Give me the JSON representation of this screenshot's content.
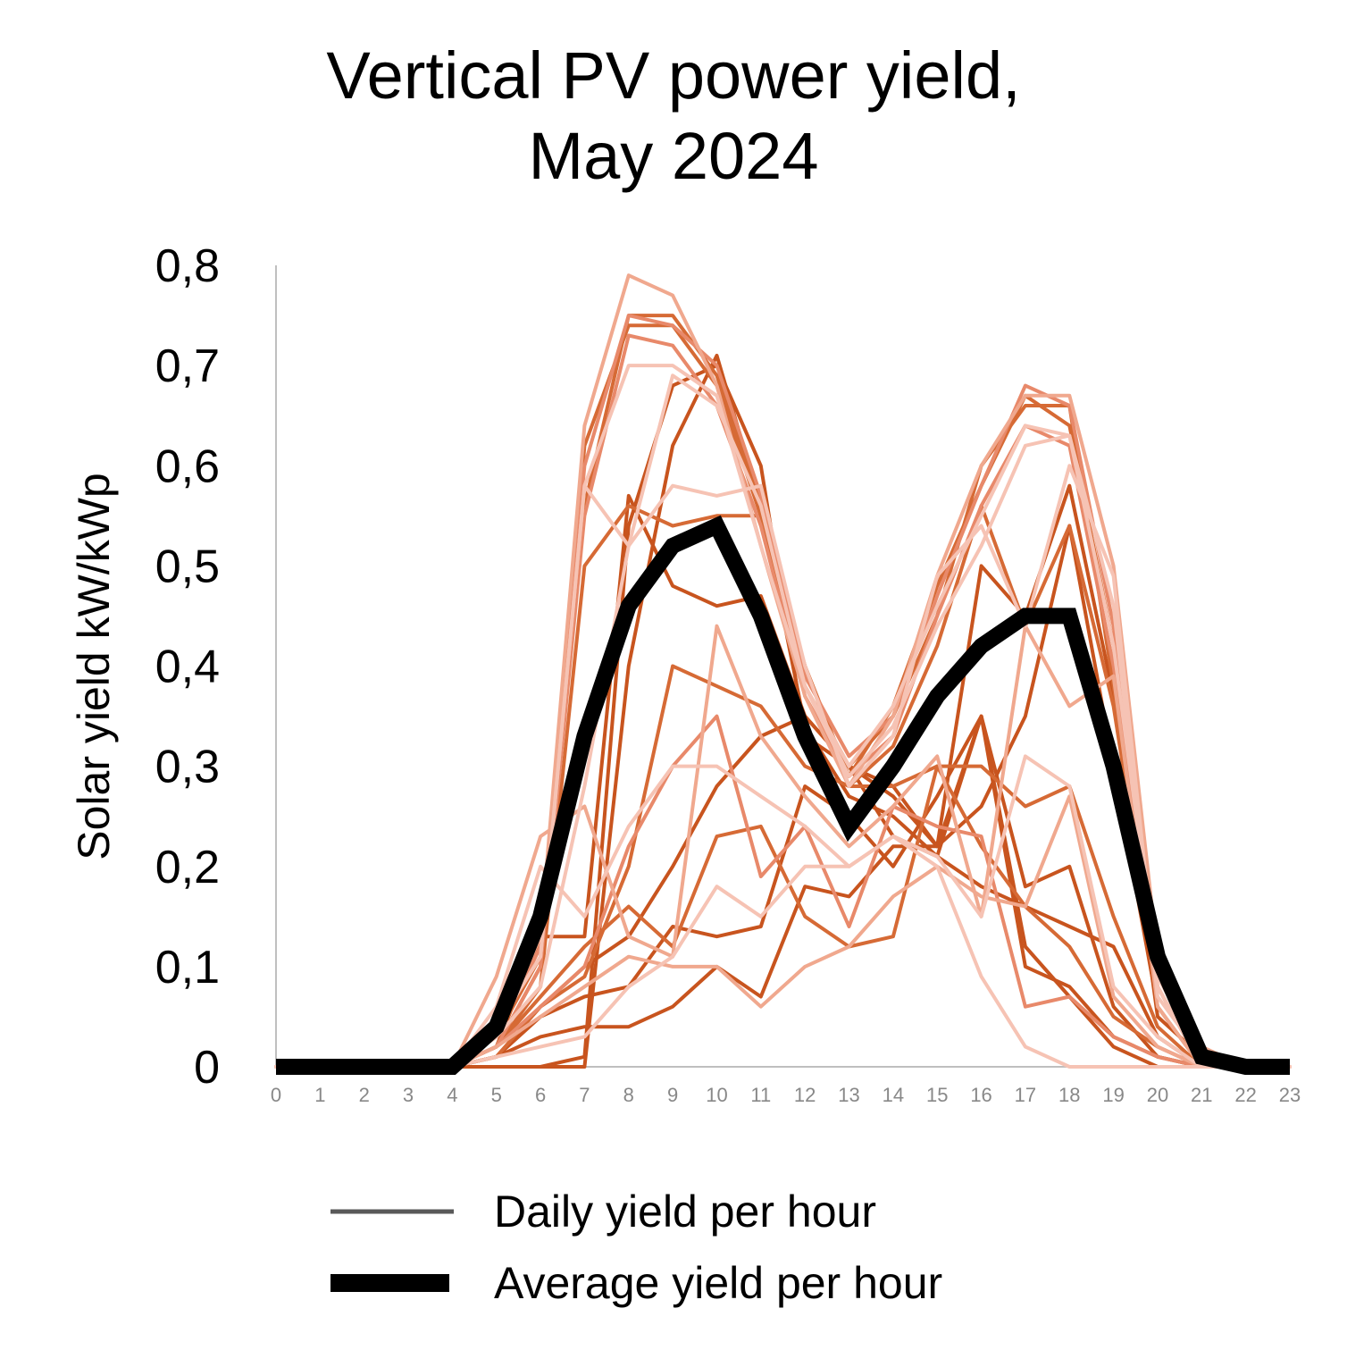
{
  "chart_data": {
    "type": "line",
    "title": [
      "Vertical PV power yield,",
      "May 2024"
    ],
    "ylabel": "Solar yield kW/kWp",
    "xlabel": "",
    "x": [
      0,
      1,
      2,
      3,
      4,
      5,
      6,
      7,
      8,
      9,
      10,
      11,
      12,
      13,
      14,
      15,
      16,
      17,
      18,
      19,
      20,
      21,
      22,
      23
    ],
    "xtick_labels": [
      "0",
      "1",
      "2",
      "3",
      "4",
      "5",
      "6",
      "7",
      "8",
      "9",
      "10",
      "11",
      "12",
      "13",
      "14",
      "15",
      "16",
      "17",
      "18",
      "19",
      "20",
      "21",
      "22",
      "23"
    ],
    "ytick_labels": [
      "0",
      "0,1",
      "0,2",
      "0,3",
      "0,4",
      "0,5",
      "0,6",
      "0,7",
      "0,8"
    ],
    "yticks": [
      0,
      0.1,
      0.2,
      0.3,
      0.4,
      0.5,
      0.6,
      0.7,
      0.8
    ],
    "ylim": [
      0,
      0.8
    ],
    "xlim": [
      0,
      23
    ],
    "grid": false,
    "legend_position": "bottom",
    "legend": [
      {
        "label": "Daily yield per hour",
        "color": "#595959",
        "style": "thin"
      },
      {
        "label": "Average yield per hour",
        "color": "#000000",
        "style": "thick"
      }
    ],
    "daily_palette": [
      "#c8541e",
      "#d66a35",
      "#e8896a",
      "#f0a88e",
      "#f6c3b4"
    ],
    "average": {
      "name": "Average yield per hour",
      "color": "#000000",
      "values": [
        0,
        0,
        0,
        0,
        0,
        0.04,
        0.15,
        0.33,
        0.46,
        0.52,
        0.54,
        0.45,
        0.33,
        0.24,
        0.3,
        0.37,
        0.42,
        0.45,
        0.45,
        0.3,
        0.11,
        0.01,
        0,
        0
      ]
    },
    "daily_series": [
      {
        "color_index": 0,
        "values": [
          0,
          0,
          0,
          0,
          0,
          0.02,
          0.13,
          0.13,
          0.57,
          0.48,
          0.46,
          0.47,
          0.35,
          0.3,
          0.27,
          0.22,
          0.5,
          0.45,
          0.58,
          0.37,
          0.05,
          0.01,
          0,
          0
        ]
      },
      {
        "color_index": 0,
        "values": [
          0,
          0,
          0,
          0,
          0,
          0,
          0,
          0.01,
          0.54,
          0.68,
          0.7,
          0.6,
          0.33,
          0.3,
          0.28,
          0.22,
          0.26,
          0.35,
          0.54,
          0.3,
          0.06,
          0,
          0,
          0
        ]
      },
      {
        "color_index": 0,
        "values": [
          0,
          0,
          0,
          0,
          0,
          0,
          0,
          0,
          0.4,
          0.62,
          0.71,
          0.56,
          0.34,
          0.27,
          0.25,
          0.21,
          0.18,
          0.16,
          0.14,
          0.12,
          0.03,
          0,
          0,
          0
        ]
      },
      {
        "color_index": 0,
        "values": [
          0,
          0,
          0,
          0,
          0,
          0.01,
          0.03,
          0.04,
          0.04,
          0.06,
          0.1,
          0.07,
          0.18,
          0.17,
          0.22,
          0.22,
          0.35,
          0.18,
          0.2,
          0.06,
          0.01,
          0,
          0,
          0
        ]
      },
      {
        "color_index": 0,
        "values": [
          0,
          0,
          0,
          0,
          0,
          0.01,
          0.05,
          0.07,
          0.08,
          0.14,
          0.13,
          0.14,
          0.28,
          0.25,
          0.2,
          0.27,
          0.35,
          0.1,
          0.08,
          0.03,
          0.01,
          0,
          0,
          0
        ]
      },
      {
        "color_index": 0,
        "values": [
          0,
          0,
          0,
          0,
          0,
          0.01,
          0.06,
          0.1,
          0.13,
          0.2,
          0.28,
          0.33,
          0.35,
          0.3,
          0.23,
          0.21,
          0.35,
          0.12,
          0.07,
          0.02,
          0,
          0,
          0,
          0
        ]
      },
      {
        "color_index": 1,
        "values": [
          0,
          0,
          0,
          0,
          0,
          0.02,
          0.07,
          0.12,
          0.16,
          0.12,
          0.23,
          0.24,
          0.15,
          0.12,
          0.13,
          0.3,
          0.22,
          0.16,
          0.12,
          0.05,
          0.02,
          0,
          0,
          0
        ]
      },
      {
        "color_index": 1,
        "values": [
          0,
          0,
          0,
          0,
          0,
          0.02,
          0.1,
          0.62,
          0.74,
          0.74,
          0.68,
          0.55,
          0.38,
          0.3,
          0.35,
          0.45,
          0.6,
          0.66,
          0.66,
          0.38,
          0.1,
          0.01,
          0,
          0
        ]
      },
      {
        "color_index": 1,
        "values": [
          0,
          0,
          0,
          0,
          0,
          0.03,
          0.11,
          0.56,
          0.75,
          0.75,
          0.69,
          0.56,
          0.4,
          0.29,
          0.36,
          0.48,
          0.58,
          0.67,
          0.64,
          0.42,
          0.11,
          0.01,
          0,
          0
        ]
      },
      {
        "color_index": 1,
        "values": [
          0,
          0,
          0,
          0,
          0,
          0.02,
          0.08,
          0.5,
          0.56,
          0.54,
          0.55,
          0.55,
          0.4,
          0.28,
          0.32,
          0.42,
          0.56,
          0.44,
          0.54,
          0.36,
          0.08,
          0,
          0,
          0
        ]
      },
      {
        "color_index": 1,
        "values": [
          0,
          0,
          0,
          0,
          0,
          0.01,
          0.06,
          0.09,
          0.2,
          0.4,
          0.38,
          0.36,
          0.3,
          0.28,
          0.28,
          0.3,
          0.3,
          0.26,
          0.28,
          0.15,
          0.04,
          0,
          0,
          0
        ]
      },
      {
        "color_index": 2,
        "values": [
          0,
          0,
          0,
          0,
          0,
          0.03,
          0.12,
          0.6,
          0.75,
          0.74,
          0.7,
          0.57,
          0.39,
          0.31,
          0.35,
          0.47,
          0.58,
          0.68,
          0.66,
          0.44,
          0.11,
          0.01,
          0,
          0
        ]
      },
      {
        "color_index": 2,
        "values": [
          0,
          0,
          0,
          0,
          0,
          0.02,
          0.1,
          0.55,
          0.73,
          0.72,
          0.66,
          0.54,
          0.37,
          0.29,
          0.33,
          0.45,
          0.56,
          0.64,
          0.62,
          0.4,
          0.1,
          0.01,
          0,
          0
        ]
      },
      {
        "color_index": 2,
        "values": [
          0,
          0,
          0,
          0,
          0,
          0.02,
          0.06,
          0.1,
          0.22,
          0.3,
          0.35,
          0.19,
          0.24,
          0.14,
          0.26,
          0.24,
          0.23,
          0.06,
          0.07,
          0.03,
          0.01,
          0,
          0,
          0
        ]
      },
      {
        "color_index": 3,
        "values": [
          0,
          0,
          0,
          0,
          0,
          0.03,
          0.13,
          0.64,
          0.79,
          0.77,
          0.68,
          0.52,
          0.37,
          0.28,
          0.35,
          0.49,
          0.6,
          0.67,
          0.67,
          0.5,
          0.11,
          0.02,
          0,
          0
        ]
      },
      {
        "color_index": 3,
        "values": [
          0,
          0,
          0,
          0,
          0,
          0.09,
          0.23,
          0.26,
          0.13,
          0.11,
          0.44,
          0.33,
          0.27,
          0.22,
          0.26,
          0.31,
          0.15,
          0.44,
          0.36,
          0.39,
          0.06,
          0,
          0,
          0
        ]
      },
      {
        "color_index": 3,
        "values": [
          0,
          0,
          0,
          0,
          0,
          0.02,
          0.05,
          0.08,
          0.11,
          0.1,
          0.1,
          0.06,
          0.1,
          0.12,
          0.17,
          0.2,
          0.17,
          0.16,
          0.27,
          0.07,
          0.02,
          0,
          0,
          0
        ]
      },
      {
        "color_index": 4,
        "values": [
          0,
          0,
          0,
          0,
          0,
          0.04,
          0.11,
          0.58,
          0.7,
          0.7,
          0.67,
          0.52,
          0.38,
          0.3,
          0.36,
          0.46,
          0.55,
          0.64,
          0.63,
          0.42,
          0.09,
          0.01,
          0,
          0
        ]
      },
      {
        "color_index": 4,
        "values": [
          0,
          0,
          0,
          0,
          0,
          0.04,
          0.11,
          0.58,
          0.52,
          0.58,
          0.57,
          0.58,
          0.4,
          0.28,
          0.33,
          0.49,
          0.54,
          0.44,
          0.6,
          0.49,
          0.08,
          0,
          0,
          0
        ]
      },
      {
        "color_index": 4,
        "values": [
          0,
          0,
          0,
          0,
          0,
          0.06,
          0.2,
          0.15,
          0.24,
          0.3,
          0.3,
          0.27,
          0.24,
          0.2,
          0.23,
          0.2,
          0.09,
          0.02,
          0,
          0,
          0,
          0,
          0,
          0
        ]
      },
      {
        "color_index": 4,
        "values": [
          0,
          0,
          0,
          0,
          0,
          0.01,
          0.02,
          0.03,
          0.08,
          0.11,
          0.18,
          0.15,
          0.2,
          0.2,
          0.23,
          0.21,
          0.15,
          0.31,
          0.28,
          0.08,
          0.03,
          0,
          0,
          0
        ]
      },
      {
        "color_index": 4,
        "values": [
          0,
          0,
          0,
          0,
          0,
          0.03,
          0.08,
          0.28,
          0.52,
          0.69,
          0.66,
          0.56,
          0.38,
          0.29,
          0.34,
          0.44,
          0.52,
          0.62,
          0.63,
          0.46,
          0.07,
          0.01,
          0,
          0
        ]
      }
    ]
  }
}
